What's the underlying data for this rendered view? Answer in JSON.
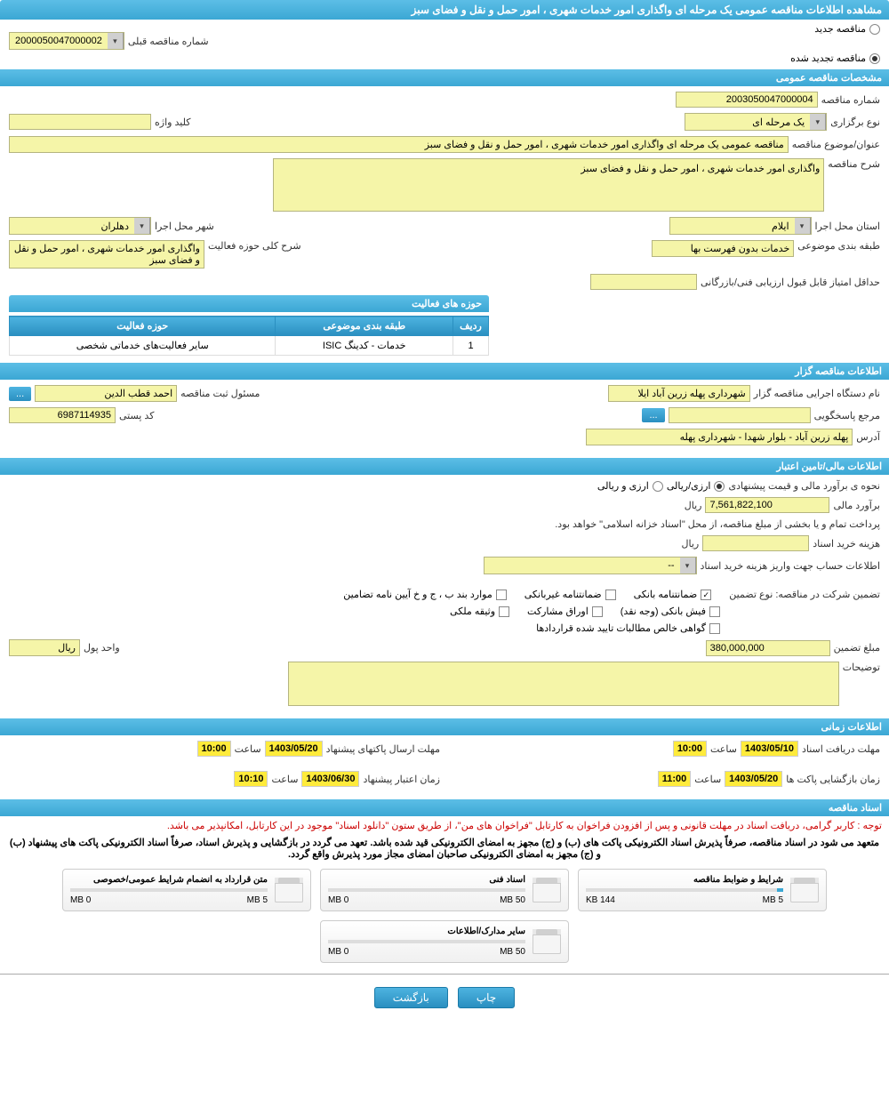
{
  "header": {
    "title": "مشاهده اطلاعات مناقصه عمومی یک مرحله ای واگذاری امور خدمات شهری ، امور حمل و نقل و فضای سبز"
  },
  "type_select": {
    "opt_new": "مناقصه جدید",
    "opt_renewed": "مناقصه تجدید شده",
    "prev_label": "شماره مناقصه قبلی",
    "prev_value": "2000050047000002"
  },
  "general": {
    "section_title": "مشخصات مناقصه عمومی",
    "number_label": "شماره مناقصه",
    "number_value": "2003050047000004",
    "type_label": "نوع برگزاری",
    "type_value": "یک مرحله ای",
    "keyword_label": "کلید واژه",
    "keyword_value": "",
    "subject_label": "عنوان/موضوع مناقصه",
    "subject_value": "مناقصه عمومی یک مرحله ای واگذاری امور خدمات شهری ، امور حمل و نقل و فضای سبز",
    "desc_label": "شرح مناقصه",
    "desc_value": "واگذاری امور خدمات شهری ، امور حمل و نقل و فضای سبز",
    "province_label": "استان محل اجرا",
    "province_value": "ایلام",
    "city_label": "شهر محل اجرا",
    "city_value": "دهلران",
    "category_label": "طبقه بندی موضوعی",
    "category_value": "خدمات بدون فهرست بها",
    "scope_label": "شرح کلی حوزه فعالیت",
    "scope_value": "واگذاری امور خدمات شهری ، امور حمل و نقل و فضای سبز",
    "min_score_label": "حداقل امتیاز قابل قبول ارزیابی فنی/بازرگانی",
    "min_score_value": ""
  },
  "activity_table": {
    "title": "حوزه های فعالیت",
    "col_row": "ردیف",
    "col_cat": "طبقه بندی موضوعی",
    "col_scope": "حوزه فعالیت",
    "rows": [
      {
        "n": "1",
        "cat": "خدمات - کدینگ ISIC",
        "scope": "سایر فعالیت‌های خدماتی شخصی"
      }
    ]
  },
  "org": {
    "section_title": "اطلاعات مناقصه گزار",
    "exec_label": "نام دستگاه اجرایی مناقصه گزار",
    "exec_value": "شهرداری پهله زرین آباد ایلا",
    "reg_label": "مسئول ثبت مناقصه",
    "reg_value": "احمد قطب الدین",
    "more_btn": "...",
    "contact_label": "مرجع پاسخگویی",
    "contact_value": "",
    "postal_label": "کد پستی",
    "postal_value": "6987114935",
    "address_label": "آدرس",
    "address_value": "پهله زرین آباد - بلوار شهدا - شهرداری پهله"
  },
  "finance": {
    "section_title": "اطلاعات مالی/تامین اعتبار",
    "method_label": "نحوه ی برآورد مالی و قیمت پیشنهادی",
    "opt_rial": "ارزی/ریالی",
    "opt_other": "ارزی و ریالی",
    "estimate_label": "برآورد مالی",
    "estimate_value": "7,561,822,100",
    "estimate_unit": "ریال",
    "treasury_note": "پرداخت تمام و یا بخشی از مبلغ مناقصه، از محل \"اسناد خزانه اسلامی\" خواهد بود.",
    "doc_cost_label": "هزینه خرید اسناد",
    "doc_cost_value": "",
    "doc_cost_unit": "ریال",
    "account_label": "اطلاعات حساب جهت واریز هزینه خرید اسناد",
    "account_value": "--"
  },
  "guarantee": {
    "type_label": "تضمین شرکت در مناقصه:   نوع تضمین",
    "opt_bank": "ضمانتنامه بانکی",
    "opt_nonbank": "ضمانتنامه غیربانکی",
    "opt_items": "موارد بند ب ، ج و خ آیین نامه تضامین",
    "opt_cash": "فیش بانکی (وجه نقد)",
    "opt_bonds": "اوراق مشارکت",
    "opt_property": "وثیقه ملکی",
    "opt_cert": "گواهی خالص مطالبات تایید شده قراردادها",
    "amount_label": "مبلغ تضمین",
    "amount_value": "380,000,000",
    "unit_label": "واحد پول",
    "unit_value": "ریال",
    "notes_label": "توضیحات",
    "notes_value": ""
  },
  "timing": {
    "section_title": "اطلاعات زمانی",
    "receive_label": "مهلت دریافت اسناد",
    "receive_date": "1403/05/10",
    "receive_time_label": "ساعت",
    "receive_time": "10:00",
    "submit_label": "مهلت ارسال پاکتهای پیشنهاد",
    "submit_date": "1403/05/20",
    "submit_time_label": "ساعت",
    "submit_time": "10:00",
    "open_label": "زمان بازگشایی پاکت ها",
    "open_date": "1403/05/20",
    "open_time_label": "ساعت",
    "open_time": "11:00",
    "validity_label": "زمان اعتبار پیشنهاد",
    "validity_date": "1403/06/30",
    "validity_time_label": "ساعت",
    "validity_time": "10:10"
  },
  "docs": {
    "section_title": "اسناد مناقصه",
    "warning1": "توجه : کاربر گرامی، دریافت اسناد در مهلت قانونی و پس از افزودن فراخوان به کارتابل \"فراخوان های من\"، از طریق ستون \"دانلود اسناد\" موجود در این کارتابل، امکانپذیر می باشد.",
    "warning2": "متعهد می شود در اسناد مناقصه، صرفاً پذیرش اسناد الکترونیکی پاکت های (ب) و (ج) مجهز به امضای الکترونیکی قید شده باشد. تعهد می گردد در بازگشایی و پذیرش اسناد، صرفاً اسناد الکترونیکی پاکت های پیشنهاد (ب) و (ج) مجهز به امضای الکترونیکی صاحبان امضای مجاز مورد پذیرش واقع گردد.",
    "files": [
      {
        "name": "شرایط و ضوابط مناقصه",
        "used": "144 KB",
        "max": "5 MB",
        "pct": 3
      },
      {
        "name": "اسناد فنی",
        "used": "0 MB",
        "max": "50 MB",
        "pct": 0
      },
      {
        "name": "متن قرارداد به انضمام شرایط عمومی/خصوصی",
        "used": "0 MB",
        "max": "5 MB",
        "pct": 0
      },
      {
        "name": "سایر مدارک/اطلاعات",
        "used": "0 MB",
        "max": "50 MB",
        "pct": 0
      }
    ]
  },
  "footer": {
    "print": "چاپ",
    "back": "بازگشت"
  }
}
